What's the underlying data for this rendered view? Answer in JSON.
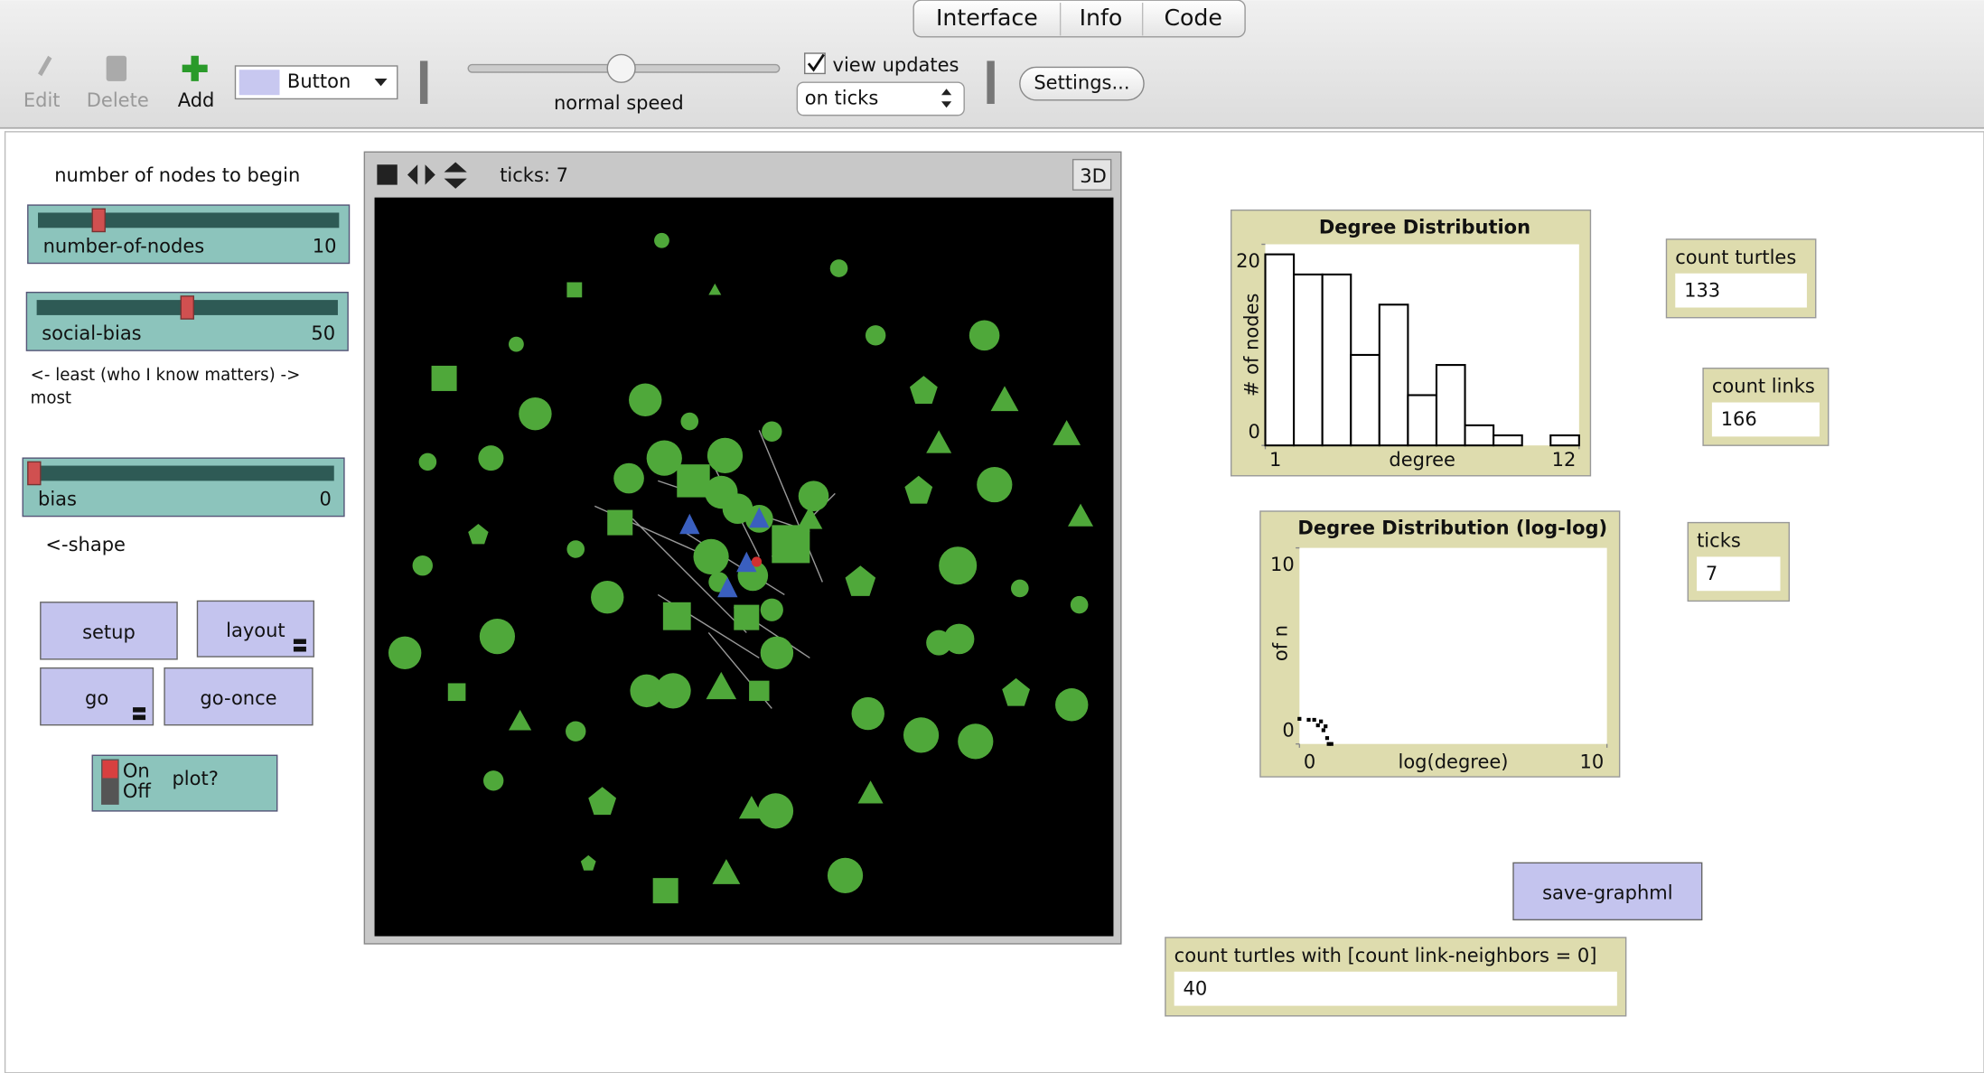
{
  "tabs": [
    "Interface",
    "Info",
    "Code"
  ],
  "toolbar": {
    "edit": "Edit",
    "delete": "Delete",
    "add": "Add",
    "widget_type": "Button",
    "speed": "normal speed",
    "view_updates": "view updates",
    "update_mode": "on ticks",
    "settings": "Settings..."
  },
  "notes": {
    "nodes": "number of nodes to begin",
    "bias_line1": "<- least (who I know matters) ->",
    "bias_line2": "most",
    "shape": "<-shape"
  },
  "sliders": [
    {
      "name": "number-of-nodes",
      "value": 10
    },
    {
      "name": "social-bias",
      "value": 50
    },
    {
      "name": "bias",
      "value": 0
    }
  ],
  "buttons": [
    "setup",
    "layout",
    "go",
    "go-once",
    "save-graphml"
  ],
  "switch": {
    "on": "On",
    "off": "Off",
    "label": "plot?"
  },
  "view": {
    "ticks_label": "ticks: 7",
    "three_d": "3D"
  },
  "monitors": [
    {
      "label": "count turtles",
      "value": 133
    },
    {
      "label": "count links",
      "value": 166
    },
    {
      "label": "ticks",
      "value": 7
    },
    {
      "label": "count turtles with [count link-neighbors = 0]",
      "value": 40
    }
  ],
  "chart_data": [
    {
      "type": "histogram",
      "title": "Degree Distribution",
      "x_label": "degree",
      "y_label": "# of nodes",
      "bins": [
        1,
        2,
        3,
        4,
        5,
        6,
        7,
        8,
        9,
        10,
        11,
        12
      ],
      "values": [
        19,
        17,
        17,
        9,
        14,
        5,
        8,
        2,
        1,
        0,
        1
      ],
      "color": "#000000",
      "xlim": [
        1,
        12
      ],
      "xticks": [
        1,
        12
      ],
      "ylim": [
        0,
        20
      ],
      "yticks": [
        0,
        20
      ]
    },
    {
      "type": "scatter",
      "title": "Degree Distribution (log-log)",
      "x_label": "log(degree)",
      "y_label": "log(# of nodes)",
      "x": [
        0,
        0.3,
        0.48,
        0.6,
        0.7,
        0.78,
        0.85,
        0.9,
        0.95,
        1.04
      ],
      "values": [
        1.28,
        1.23,
        1.23,
        0.95,
        1.15,
        0.7,
        0.9,
        0.3,
        0,
        0
      ],
      "color": "#000000",
      "xlim": [
        0,
        10
      ],
      "xticks": [
        0,
        10
      ],
      "ylim": [
        0,
        10
      ],
      "yticks": [
        0,
        10
      ]
    }
  ]
}
